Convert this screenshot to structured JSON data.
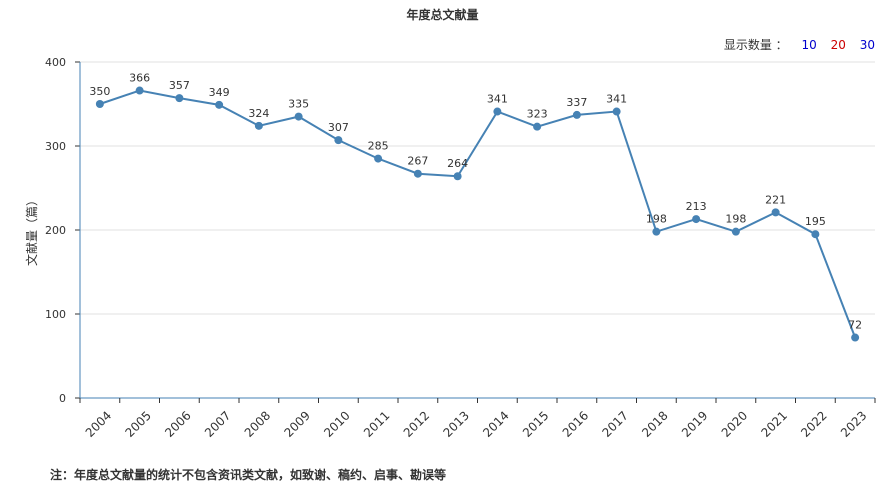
{
  "chart_data": {
    "type": "line",
    "title": "年度总文献量",
    "ylabel": "文献量（篇）",
    "xlabel": "",
    "categories": [
      "2004",
      "2005",
      "2006",
      "2007",
      "2008",
      "2009",
      "2010",
      "2011",
      "2012",
      "2013",
      "2014",
      "2015",
      "2016",
      "2017",
      "2018",
      "2019",
      "2020",
      "2021",
      "2022",
      "2023"
    ],
    "series": [
      {
        "values": [
          350,
          366,
          357,
          349,
          324,
          335,
          307,
          285,
          267,
          264,
          341,
          323,
          337,
          341,
          198,
          213,
          198,
          221,
          195,
          72
        ]
      }
    ],
    "ylim": [
      0,
      400
    ],
    "yticks": [
      0,
      100,
      200,
      300,
      400
    ],
    "grid": true,
    "color": "#4682b4"
  },
  "controls": {
    "label": "显示数量 ：",
    "options": [
      {
        "text": "10",
        "color": "#0000cc"
      },
      {
        "text": "20",
        "color": "#cc0000"
      },
      {
        "text": "30",
        "color": "#0000cc"
      }
    ]
  },
  "footnote": "注：年度总文献量的统计不包含资讯类文献，如致谢、稿约、启事、勘误等"
}
